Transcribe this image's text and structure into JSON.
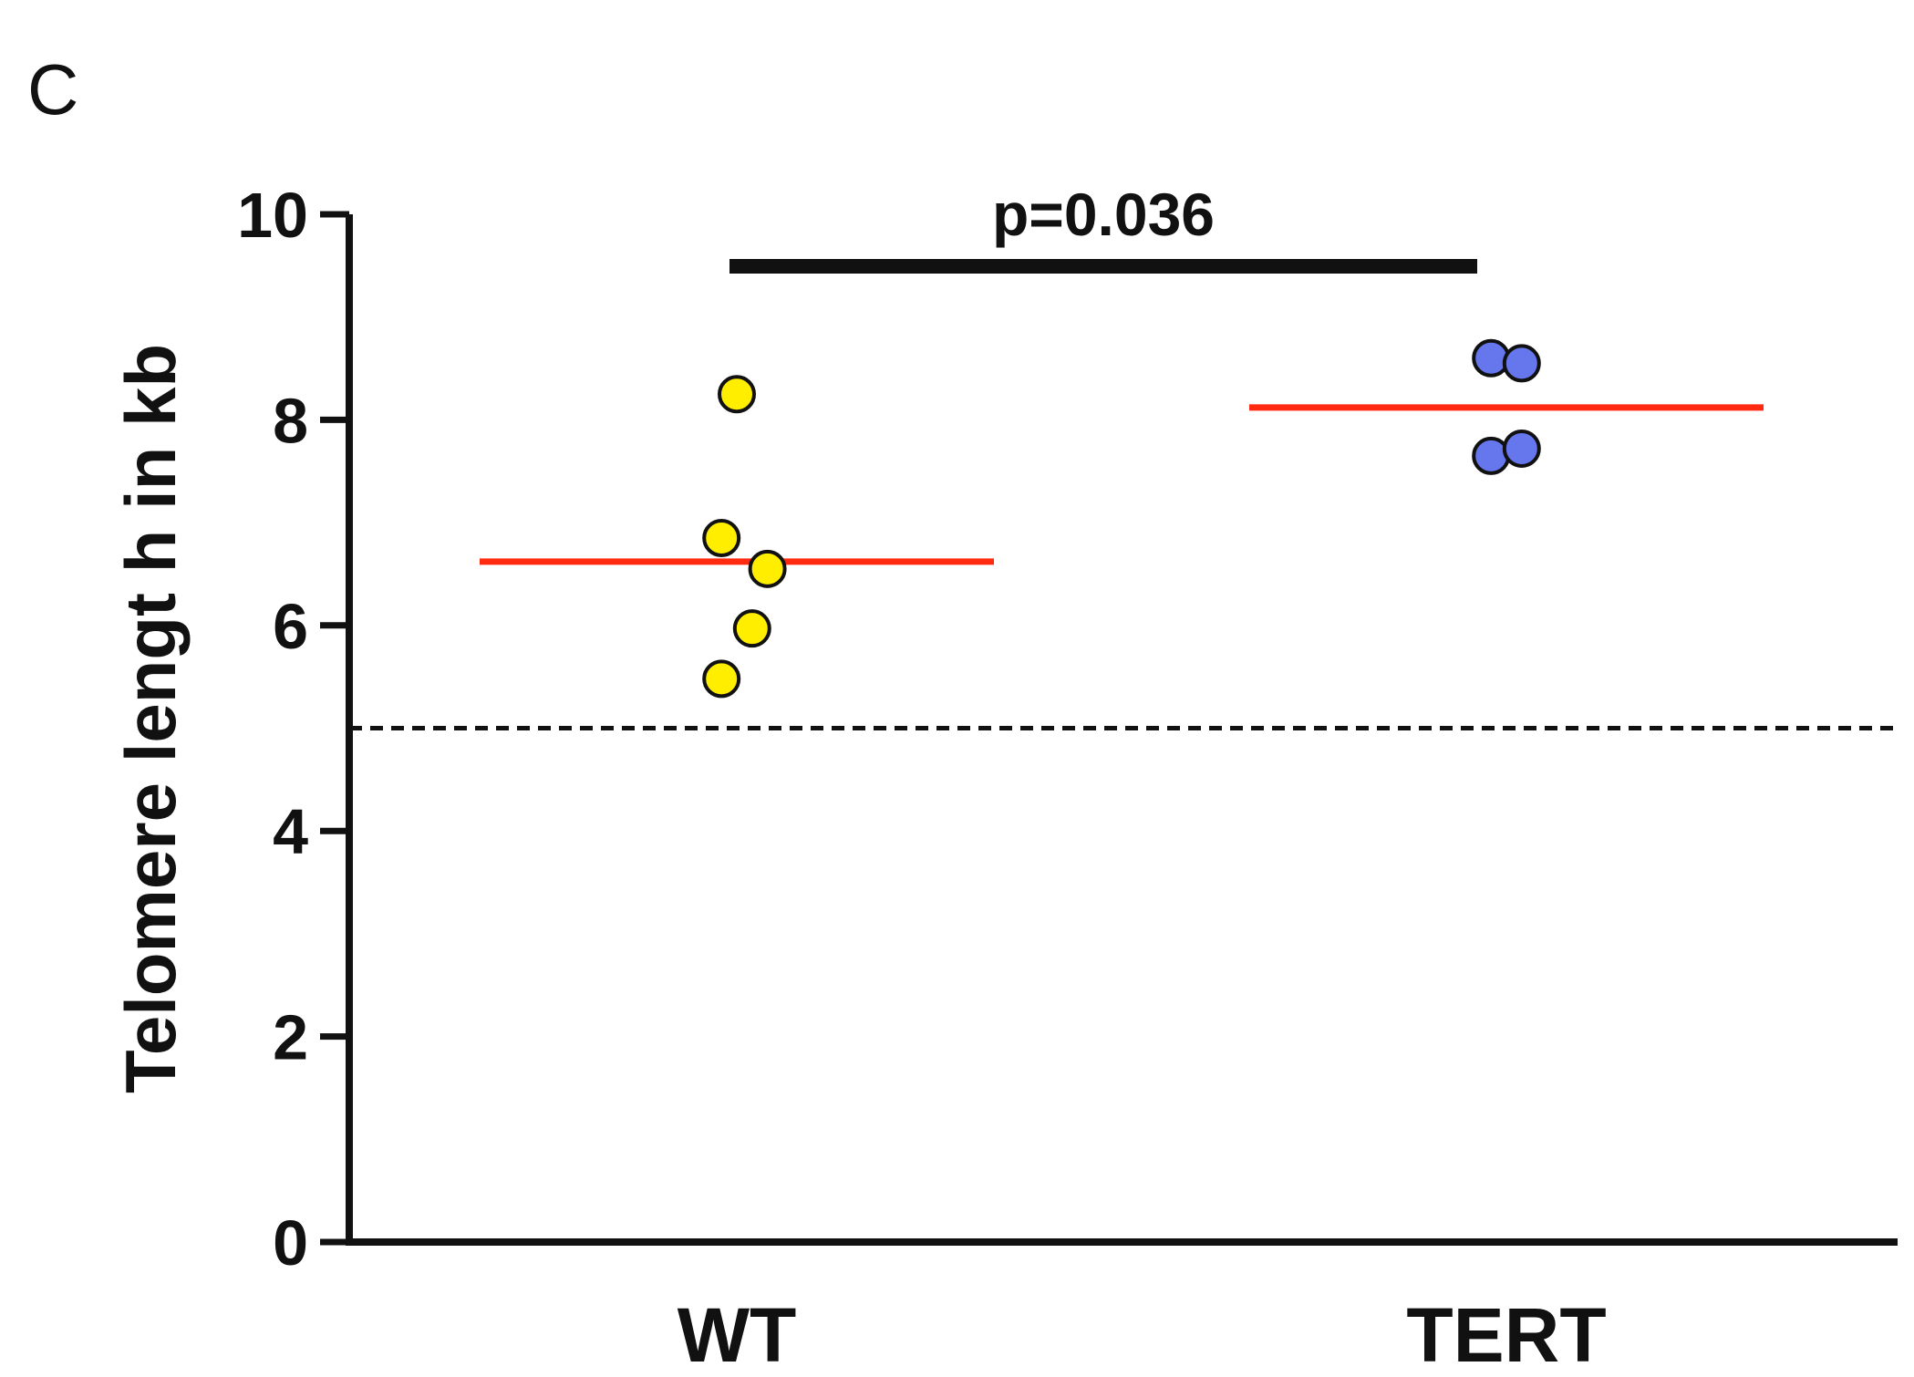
{
  "panel_label": "C",
  "chart_data": {
    "type": "scatter",
    "title": "",
    "xlabel": "",
    "ylabel": "Telomere lengt h in kb",
    "ylim": [
      0,
      10
    ],
    "yticks": [
      0,
      2,
      4,
      6,
      8,
      10
    ],
    "categories": [
      "WT",
      "TERT"
    ],
    "series": [
      {
        "name": "WT",
        "color": "#ffee00",
        "points": [
          {
            "jitter": 0.0,
            "value": 8.25
          },
          {
            "jitter": -0.06,
            "value": 6.85
          },
          {
            "jitter": 0.12,
            "value": 6.55
          },
          {
            "jitter": 0.06,
            "value": 5.97
          },
          {
            "jitter": -0.06,
            "value": 5.48
          }
        ],
        "mean": 6.62
      },
      {
        "name": "TERT",
        "color": "#6677ee",
        "points": [
          {
            "jitter": -0.06,
            "value": 8.6
          },
          {
            "jitter": 0.06,
            "value": 8.55
          },
          {
            "jitter": -0.06,
            "value": 7.65
          },
          {
            "jitter": 0.06,
            "value": 7.72
          }
        ],
        "mean": 8.12
      }
    ],
    "reference_line": {
      "value": 5.0,
      "style": "dashed"
    },
    "mean_line_color": "#ff2a10",
    "significance": {
      "from": "WT",
      "to": "TERT",
      "label": "p=0.036"
    }
  }
}
